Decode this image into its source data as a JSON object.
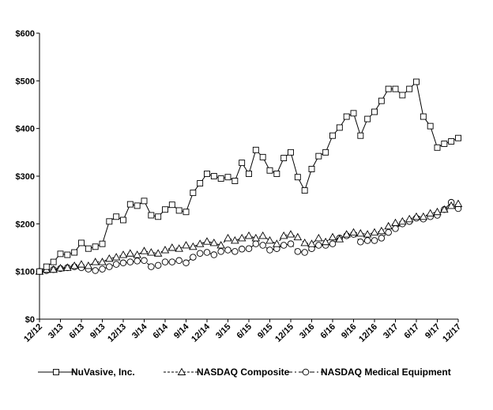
{
  "chart_data": {
    "type": "line",
    "title": "",
    "xlabel": "",
    "ylabel": "",
    "ylim": [
      0,
      600
    ],
    "y_ticks": [
      "$0",
      "$100",
      "$200",
      "$300",
      "$400",
      "$500",
      "$600"
    ],
    "y_tick_values": [
      0,
      100,
      200,
      300,
      400,
      500,
      600
    ],
    "x_ticks": [
      "12/12",
      "3/13",
      "6/13",
      "9/13",
      "12/13",
      "3/14",
      "6/14",
      "9/14",
      "12/14",
      "3/15",
      "6/15",
      "9/15",
      "12/15",
      "3/16",
      "6/16",
      "9/16",
      "12/16",
      "3/17",
      "6/17",
      "9/17",
      "12/17"
    ],
    "months": 61,
    "grid": false,
    "legend_position": "bottom",
    "series": [
      {
        "name": "NuVasive, Inc.",
        "marker": "square",
        "dash": "solid",
        "values": [
          100,
          110,
          120,
          137,
          135,
          140,
          160,
          148,
          152,
          158,
          205,
          215,
          208,
          241,
          238,
          248,
          218,
          215,
          230,
          240,
          228,
          225,
          265,
          285,
          305,
          300,
          295,
          298,
          290,
          328,
          305,
          355,
          340,
          312,
          305,
          338,
          350,
          298,
          270,
          315,
          342,
          350,
          385,
          402,
          425,
          432,
          385,
          420,
          435,
          458,
          483,
          483,
          470,
          483,
          498,
          425,
          405,
          360,
          368,
          373,
          380
        ]
      },
      {
        "name": "NASDAQ Composite",
        "marker": "triangle",
        "dash": "dashed",
        "values": [
          100,
          104,
          104,
          107,
          108,
          112,
          115,
          112,
          120,
          120,
          127,
          130,
          135,
          138,
          135,
          143,
          140,
          138,
          145,
          150,
          148,
          155,
          152,
          158,
          163,
          160,
          155,
          170,
          165,
          170,
          175,
          170,
          175,
          165,
          158,
          175,
          178,
          172,
          160,
          158,
          170,
          162,
          172,
          168,
          178,
          182,
          180,
          178,
          182,
          185,
          195,
          202,
          205,
          210,
          215,
          215,
          222,
          225,
          230,
          238,
          242
        ]
      },
      {
        "name": "NASDAQ Medical Equipment",
        "marker": "circle",
        "dash": "dashdot",
        "values": [
          100,
          102,
          104,
          106,
          108,
          110,
          108,
          105,
          102,
          105,
          110,
          115,
          118,
          120,
          122,
          123,
          110,
          113,
          120,
          120,
          123,
          118,
          130,
          138,
          140,
          135,
          142,
          145,
          142,
          147,
          148,
          158,
          155,
          145,
          148,
          155,
          158,
          142,
          140,
          148,
          155,
          155,
          158,
          170,
          175,
          178,
          162,
          165,
          165,
          170,
          182,
          190,
          200,
          205,
          212,
          210,
          215,
          218,
          230,
          245,
          232
        ]
      }
    ]
  }
}
